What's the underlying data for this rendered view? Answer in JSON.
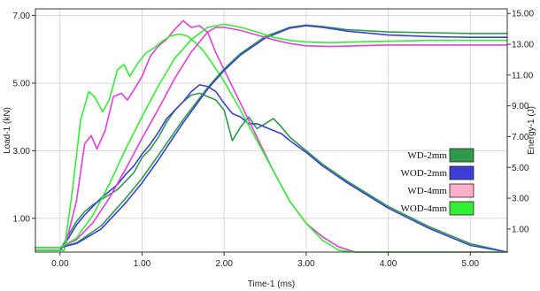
{
  "chart_data": {
    "type": "line",
    "xlabel": "Time-1 (ms)",
    "ylabel_left": "Load-1 (kN)",
    "ylabel_right": "Energy-1 (J)",
    "xlim": [
      -0.3,
      5.45
    ],
    "ylim_left": [
      0,
      7.2
    ],
    "ylim_right": [
      -0.5,
      15.3
    ],
    "x_ticks": [
      0,
      1,
      2,
      3,
      4,
      5
    ],
    "x_tick_labels": [
      "0.00",
      "1.00",
      "2.00",
      "3.00",
      "4.00",
      "5.00"
    ],
    "y_left_ticks": [
      1,
      3,
      5,
      7
    ],
    "y_left_tick_labels": [
      "1.00",
      "3.00",
      "5.00",
      "7.00"
    ],
    "y_right_ticks": [
      1,
      3,
      5,
      7,
      9,
      11,
      13,
      15
    ],
    "y_right_tick_labels": [
      "1.00",
      "3.00",
      "5.00",
      "7.00",
      "9.00",
      "11.00",
      "13.00",
      "15.00"
    ],
    "legend_position": "bottom-right",
    "legend": [
      {
        "name": "WD-2mm",
        "color": "#2e9a4a"
      },
      {
        "name": "WOD-2mm",
        "color": "#3b3fd6"
      },
      {
        "name": "WD-4mm",
        "color": "#ffb0c8"
      },
      {
        "name": "WOD-4mm",
        "color": "#33ee33"
      }
    ],
    "series": [
      {
        "legend": "WD-2mm",
        "kind": "load",
        "axis": "left",
        "color": "#2e9a4a",
        "x": [
          -0.3,
          0,
          0.1,
          0.2,
          0.3,
          0.4,
          0.5,
          0.6,
          0.7,
          0.8,
          0.9,
          1.0,
          1.1,
          1.2,
          1.3,
          1.4,
          1.5,
          1.6,
          1.7,
          1.8,
          1.9,
          2.0,
          2.1,
          2.2,
          2.3,
          2.4,
          2.5,
          2.6,
          2.7,
          2.8,
          3.0,
          3.2,
          3.5,
          4.0,
          4.5,
          5.0,
          5.45
        ],
        "y": [
          0.05,
          0.05,
          0.5,
          0.9,
          1.2,
          1.4,
          1.55,
          1.7,
          1.85,
          2.1,
          2.35,
          2.8,
          3.05,
          3.4,
          3.85,
          4.2,
          4.45,
          4.65,
          4.7,
          4.6,
          4.5,
          4.2,
          3.3,
          3.7,
          4.0,
          3.65,
          3.8,
          3.95,
          3.7,
          3.4,
          3.0,
          2.6,
          2.1,
          1.35,
          0.75,
          0.25,
          0.0
        ]
      },
      {
        "legend": "WOD-2mm",
        "kind": "load",
        "axis": "left",
        "color": "#3b3fd6",
        "x": [
          -0.3,
          0,
          0.1,
          0.2,
          0.3,
          0.4,
          0.5,
          0.6,
          0.7,
          0.8,
          0.9,
          1.0,
          1.1,
          1.2,
          1.3,
          1.4,
          1.5,
          1.6,
          1.7,
          1.8,
          1.9,
          2.0,
          2.1,
          2.2,
          2.3,
          2.4,
          2.5,
          2.6,
          2.7,
          2.8,
          3.0,
          3.2,
          3.5,
          4.0,
          4.5,
          5.0,
          5.45
        ],
        "y": [
          0.05,
          0.05,
          0.4,
          0.8,
          1.1,
          1.35,
          1.6,
          1.8,
          2.0,
          2.3,
          2.55,
          2.9,
          3.2,
          3.55,
          3.95,
          4.2,
          4.45,
          4.75,
          4.95,
          4.9,
          4.75,
          4.4,
          4.1,
          4.0,
          3.8,
          3.8,
          3.7,
          3.6,
          3.5,
          3.3,
          2.95,
          2.55,
          2.05,
          1.3,
          0.7,
          0.2,
          0.0
        ]
      },
      {
        "legend": "WD-4mm",
        "kind": "load",
        "axis": "left",
        "color": "#e040d8",
        "x": [
          -0.3,
          0.05,
          0.2,
          0.3,
          0.38,
          0.45,
          0.55,
          0.65,
          0.75,
          0.82,
          0.9,
          1.0,
          1.1,
          1.2,
          1.3,
          1.4,
          1.5,
          1.6,
          1.7,
          1.8,
          1.9,
          2.0,
          2.2,
          2.4,
          2.6,
          2.8,
          3.0,
          3.2,
          3.4,
          3.6,
          3.8,
          4.0,
          4.5,
          5.0,
          5.45
        ],
        "y": [
          0.05,
          0.05,
          1.5,
          3.2,
          3.45,
          3.05,
          3.6,
          4.6,
          4.7,
          4.5,
          4.8,
          5.2,
          5.8,
          6.1,
          6.3,
          6.6,
          6.85,
          6.65,
          6.7,
          6.5,
          5.9,
          5.4,
          4.4,
          3.4,
          2.4,
          1.5,
          0.85,
          0.45,
          0.15,
          0.0,
          0.0,
          0.0,
          0.0,
          0.0,
          0.0
        ]
      },
      {
        "legend": "WOD-4mm",
        "kind": "load",
        "axis": "left",
        "color": "#33ee33",
        "x": [
          -0.3,
          0.05,
          0.15,
          0.25,
          0.35,
          0.42,
          0.52,
          0.6,
          0.7,
          0.78,
          0.85,
          0.95,
          1.05,
          1.15,
          1.25,
          1.35,
          1.45,
          1.55,
          1.65,
          1.75,
          1.85,
          2.0,
          2.2,
          2.4,
          2.6,
          2.8,
          3.0,
          3.2,
          3.4,
          3.6,
          3.8,
          4.0,
          4.5,
          5.0,
          5.45
        ],
        "y": [
          0.05,
          0.05,
          1.8,
          3.9,
          4.75,
          4.6,
          4.15,
          4.5,
          5.4,
          5.55,
          5.2,
          5.6,
          5.9,
          6.05,
          6.25,
          6.4,
          6.45,
          6.4,
          6.2,
          5.95,
          5.6,
          5.05,
          4.2,
          3.3,
          2.4,
          1.5,
          0.85,
          0.35,
          0.05,
          0.0,
          0.0,
          0.0,
          0.0,
          0.0,
          0.0
        ]
      },
      {
        "legend": "WD-2mm",
        "kind": "energy",
        "axis": "right",
        "color": "#2e9a4a",
        "x": [
          -0.3,
          0,
          0.2,
          0.5,
          0.8,
          1.0,
          1.2,
          1.5,
          1.8,
          2.0,
          2.2,
          2.5,
          2.8,
          3.0,
          3.2,
          3.5,
          4.0,
          4.5,
          5.0,
          5.45
        ],
        "y": [
          -0.2,
          -0.2,
          0.1,
          1.2,
          3.0,
          4.3,
          5.8,
          8.1,
          10.2,
          11.4,
          12.4,
          13.5,
          14.1,
          14.25,
          14.15,
          13.95,
          13.8,
          13.75,
          13.7,
          13.7
        ]
      },
      {
        "legend": "WOD-2mm",
        "kind": "energy",
        "axis": "right",
        "color": "#3b3fd6",
        "x": [
          -0.3,
          0,
          0.2,
          0.5,
          0.8,
          1.0,
          1.2,
          1.5,
          1.8,
          2.0,
          2.2,
          2.5,
          2.8,
          3.0,
          3.2,
          3.5,
          4.0,
          4.5,
          5.0,
          5.45
        ],
        "y": [
          -0.2,
          -0.2,
          0.05,
          1.0,
          2.7,
          4.0,
          5.5,
          7.9,
          10.1,
          11.3,
          12.3,
          13.4,
          14.05,
          14.2,
          14.1,
          13.85,
          13.6,
          13.5,
          13.45,
          13.45
        ]
      },
      {
        "legend": "WD-4mm",
        "kind": "energy",
        "axis": "right",
        "color": "#e040d8",
        "x": [
          -0.3,
          0,
          0.2,
          0.4,
          0.6,
          0.8,
          1.0,
          1.2,
          1.4,
          1.6,
          1.8,
          1.9,
          2.0,
          2.2,
          2.4,
          2.6,
          2.8,
          3.0,
          3.3,
          3.6,
          4.0,
          4.5,
          5.0,
          5.45
        ],
        "y": [
          -0.2,
          -0.2,
          0.3,
          1.4,
          3.0,
          4.9,
          6.9,
          8.8,
          10.8,
          12.5,
          13.8,
          14.1,
          14.1,
          13.9,
          13.6,
          13.3,
          13.05,
          12.9,
          12.85,
          12.9,
          12.95,
          12.95,
          12.95,
          12.95
        ]
      },
      {
        "legend": "WOD-4mm",
        "kind": "energy",
        "axis": "right",
        "color": "#33ee33",
        "x": [
          -0.3,
          0,
          0.2,
          0.4,
          0.6,
          0.8,
          1.0,
          1.2,
          1.4,
          1.6,
          1.8,
          2.0,
          2.2,
          2.4,
          2.6,
          2.8,
          3.0,
          3.3,
          3.6,
          4.0,
          4.5,
          5.0,
          5.45
        ],
        "y": [
          -0.2,
          -0.2,
          0.4,
          1.9,
          3.9,
          6.2,
          8.3,
          10.3,
          12.1,
          13.3,
          14.1,
          14.3,
          14.1,
          13.8,
          13.45,
          13.25,
          13.15,
          13.1,
          13.15,
          13.2,
          13.25,
          13.25,
          13.25
        ]
      }
    ]
  }
}
